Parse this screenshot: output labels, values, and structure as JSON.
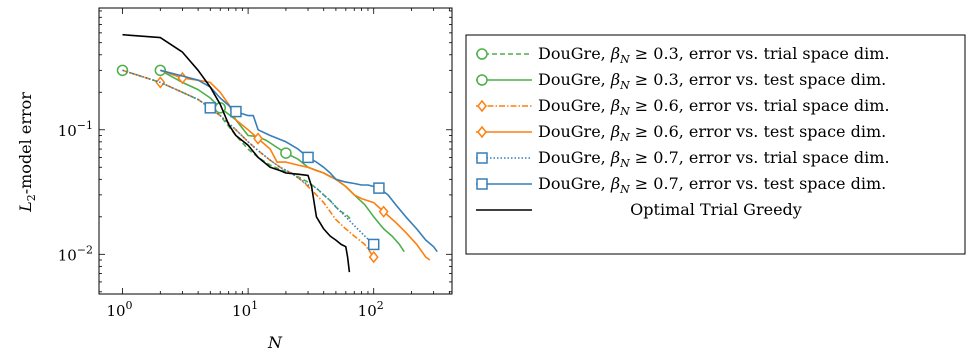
{
  "chart_data": {
    "type": "line",
    "title": "",
    "xlabel": "N",
    "ylabel": "L2-model error",
    "xscale": "log",
    "yscale": "log",
    "xlim": [
      0.65,
      420
    ],
    "ylim": [
      0.0048,
      0.95
    ],
    "x_ticks": [
      {
        "value": 1,
        "base": "10",
        "exp": "0"
      },
      {
        "value": 10,
        "base": "10",
        "exp": "1"
      },
      {
        "value": 100,
        "base": "10",
        "exp": "2"
      }
    ],
    "y_ticks": [
      {
        "value": 0.01,
        "base": "10",
        "exp": "−2"
      },
      {
        "value": 0.1,
        "base": "10",
        "exp": "−1"
      }
    ],
    "legend_position": "outside-right",
    "series": [
      {
        "name": "DouGre, βN ≥ 0.3, error vs. trial space dim.",
        "legend_parts": [
          "DouGre, ",
          "β",
          "N",
          " ≥ 0.3, error vs. trial space dim."
        ],
        "color": "#4daf4a",
        "dash": "5,3",
        "marker": "circle",
        "marker_every": [
          0,
          20
        ],
        "x": [
          1,
          2,
          3,
          4,
          6,
          8,
          10,
          12,
          15,
          18,
          22,
          26,
          30,
          35,
          40,
          45,
          50,
          55,
          60,
          66
        ],
        "y": [
          0.3,
          0.24,
          0.2,
          0.175,
          0.13,
          0.09,
          0.07,
          0.06,
          0.052,
          0.048,
          0.045,
          0.041,
          0.038,
          0.034,
          0.03,
          0.027,
          0.024,
          0.022,
          0.021,
          0.019
        ]
      },
      {
        "name": "DouGre, βN ≥ 0.3, error vs. test space dim.",
        "legend_parts": [
          "DouGre, ",
          "β",
          "N",
          " ≥ 0.3, error vs. test space dim."
        ],
        "color": "#4daf4a",
        "dash": "",
        "marker": "circle",
        "marker_every": [
          0,
          4,
          10
        ],
        "x": [
          2,
          3,
          4,
          5,
          6,
          8,
          10,
          12,
          14,
          17,
          20,
          25,
          30,
          40,
          50,
          60,
          70,
          85,
          100,
          120,
          140,
          160,
          175
        ],
        "y": [
          0.3,
          0.24,
          0.21,
          0.18,
          0.15,
          0.12,
          0.09,
          0.088,
          0.082,
          0.072,
          0.065,
          0.058,
          0.05,
          0.045,
          0.04,
          0.035,
          0.03,
          0.025,
          0.02,
          0.016,
          0.014,
          0.012,
          0.0105
        ]
      },
      {
        "name": "DouGre, βN ≥ 0.6, error vs. trial space dim.",
        "legend_parts": [
          "DouGre, ",
          "β",
          "N",
          " ≥ 0.6, error vs. trial space dim."
        ],
        "color": "#ff7f0e",
        "dash": "6,2,1.5,2",
        "marker": "diamond",
        "marker_every": [
          1,
          21
        ],
        "x": [
          1,
          2,
          3,
          4,
          5,
          6,
          8,
          10,
          12,
          15,
          18,
          22,
          26,
          30,
          35,
          40,
          45,
          50,
          60,
          70,
          85,
          100
        ],
        "y": [
          0.3,
          0.24,
          0.2,
          0.175,
          0.15,
          0.13,
          0.1,
          0.08,
          0.068,
          0.057,
          0.05,
          0.045,
          0.04,
          0.035,
          0.03,
          0.026,
          0.022,
          0.019,
          0.016,
          0.014,
          0.012,
          0.0095
        ]
      },
      {
        "name": "DouGre, βN ≥ 0.6, error vs. test space dim.",
        "legend_parts": [
          "DouGre, ",
          "β",
          "N",
          " ≥ 0.6, error vs. test space dim."
        ],
        "color": "#ff7f0e",
        "dash": "",
        "marker": "diamond",
        "marker_every": [
          1,
          8,
          22
        ],
        "x": [
          2,
          3,
          4,
          5,
          6,
          7,
          8,
          10,
          12,
          15,
          17,
          20,
          25,
          30,
          35,
          40,
          45,
          50,
          60,
          70,
          80,
          100,
          120,
          150,
          180,
          220,
          260,
          280
        ],
        "y": [
          0.3,
          0.26,
          0.25,
          0.24,
          0.2,
          0.16,
          0.12,
          0.1,
          0.085,
          0.07,
          0.055,
          0.055,
          0.052,
          0.05,
          0.047,
          0.045,
          0.042,
          0.04,
          0.035,
          0.03,
          0.028,
          0.026,
          0.022,
          0.018,
          0.015,
          0.012,
          0.0095,
          0.009
        ]
      },
      {
        "name": "DouGre, βN ≥ 0.7, error vs. trial space dim.",
        "legend_parts": [
          "DouGre, ",
          "β",
          "N",
          " ≥ 0.7, error vs. trial space dim."
        ],
        "color": "#377eb8",
        "dash": "1.5,2",
        "marker": "square",
        "marker_every": [
          4,
          22
        ],
        "x": [
          1,
          2,
          3,
          4,
          5,
          6,
          8,
          10,
          12,
          15,
          18,
          22,
          26,
          30,
          33,
          35,
          40,
          45,
          50,
          60,
          70,
          85,
          100
        ],
        "y": [
          0.3,
          0.24,
          0.2,
          0.175,
          0.15,
          0.13,
          0.1,
          0.08,
          0.068,
          0.057,
          0.05,
          0.045,
          0.04,
          0.036,
          0.035,
          0.034,
          0.03,
          0.027,
          0.024,
          0.02,
          0.017,
          0.014,
          0.012
        ]
      },
      {
        "name": "DouGre, βN ≥ 0.7, error vs. test space dim.",
        "legend_parts": [
          "DouGre, ",
          "β",
          "N",
          " ≥ 0.7, error vs. test space dim."
        ],
        "color": "#377eb8",
        "dash": "",
        "marker": "square",
        "marker_every": [
          5,
          12,
          22
        ],
        "x": [
          2,
          3,
          4,
          5,
          6,
          8,
          10,
          11,
          12,
          15,
          20,
          25,
          30,
          35,
          40,
          45,
          50,
          60,
          70,
          80,
          90,
          100,
          110,
          130,
          150,
          180,
          220,
          260,
          300,
          320
        ],
        "y": [
          0.3,
          0.27,
          0.25,
          0.22,
          0.18,
          0.14,
          0.13,
          0.13,
          0.1,
          0.09,
          0.08,
          0.07,
          0.06,
          0.055,
          0.05,
          0.045,
          0.04,
          0.038,
          0.037,
          0.036,
          0.036,
          0.035,
          0.034,
          0.03,
          0.025,
          0.02,
          0.016,
          0.013,
          0.0115,
          0.0105
        ]
      },
      {
        "name": "Optimal Trial Greedy",
        "legend_parts": [
          "Optimal Trial Greedy"
        ],
        "color": "#000000",
        "dash": "",
        "marker": "none",
        "marker_every": [],
        "x": [
          1,
          2,
          3,
          4,
          5,
          6,
          7,
          8,
          10,
          12,
          15,
          18,
          20,
          25,
          30,
          32,
          35,
          40,
          45,
          50,
          55,
          60,
          62,
          64
        ],
        "y": [
          0.58,
          0.55,
          0.42,
          0.3,
          0.22,
          0.16,
          0.11,
          0.09,
          0.075,
          0.06,
          0.05,
          0.047,
          0.045,
          0.044,
          0.043,
          0.035,
          0.02,
          0.016,
          0.014,
          0.013,
          0.012,
          0.0115,
          0.0095,
          0.0072
        ]
      }
    ]
  }
}
